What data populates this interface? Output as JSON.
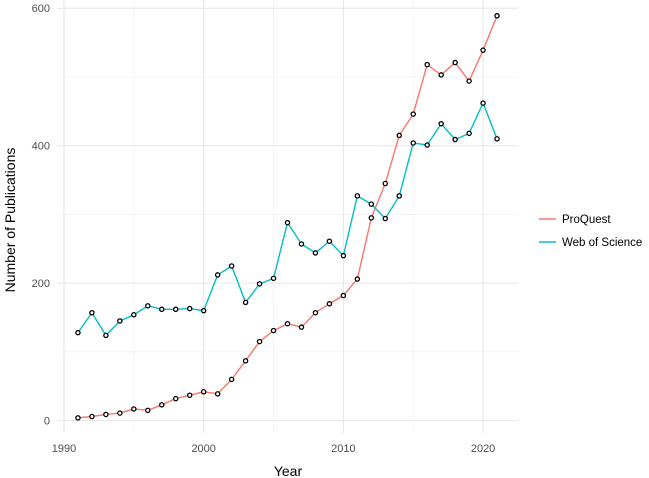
{
  "chart_data": {
    "type": "line",
    "xlabel": "Year",
    "ylabel": "Number of Publications",
    "xlim": [
      1989.5,
      2022.5
    ],
    "ylim": [
      -18,
      612
    ],
    "x_ticks": [
      1990,
      2000,
      2010,
      2020
    ],
    "y_ticks": [
      0,
      200,
      400,
      600
    ],
    "grid": true,
    "legend_position": "right",
    "x": [
      1991,
      1992,
      1993,
      1994,
      1995,
      1996,
      1997,
      1998,
      1999,
      2000,
      2001,
      2002,
      2003,
      2004,
      2005,
      2006,
      2007,
      2008,
      2009,
      2010,
      2011,
      2012,
      2013,
      2014,
      2015,
      2016,
      2017,
      2018,
      2019,
      2020,
      2021
    ],
    "series": [
      {
        "name": "ProQuest",
        "color": "#F8766D",
        "values": [
          4,
          6,
          9,
          11,
          17,
          15,
          23,
          32,
          37,
          42,
          39,
          60,
          87,
          115,
          131,
          141,
          136,
          157,
          170,
          182,
          206,
          295,
          345,
          415,
          446,
          518,
          503,
          521,
          494,
          539,
          589
        ]
      },
      {
        "name": "Web of Science",
        "color": "#00BFC4",
        "values": [
          128,
          157,
          124,
          145,
          154,
          167,
          162,
          162,
          163,
          160,
          212,
          225,
          172,
          199,
          207,
          288,
          257,
          244,
          261,
          240,
          327,
          315,
          294,
          327,
          404,
          401,
          432,
          409,
          418,
          462,
          410
        ]
      }
    ]
  }
}
